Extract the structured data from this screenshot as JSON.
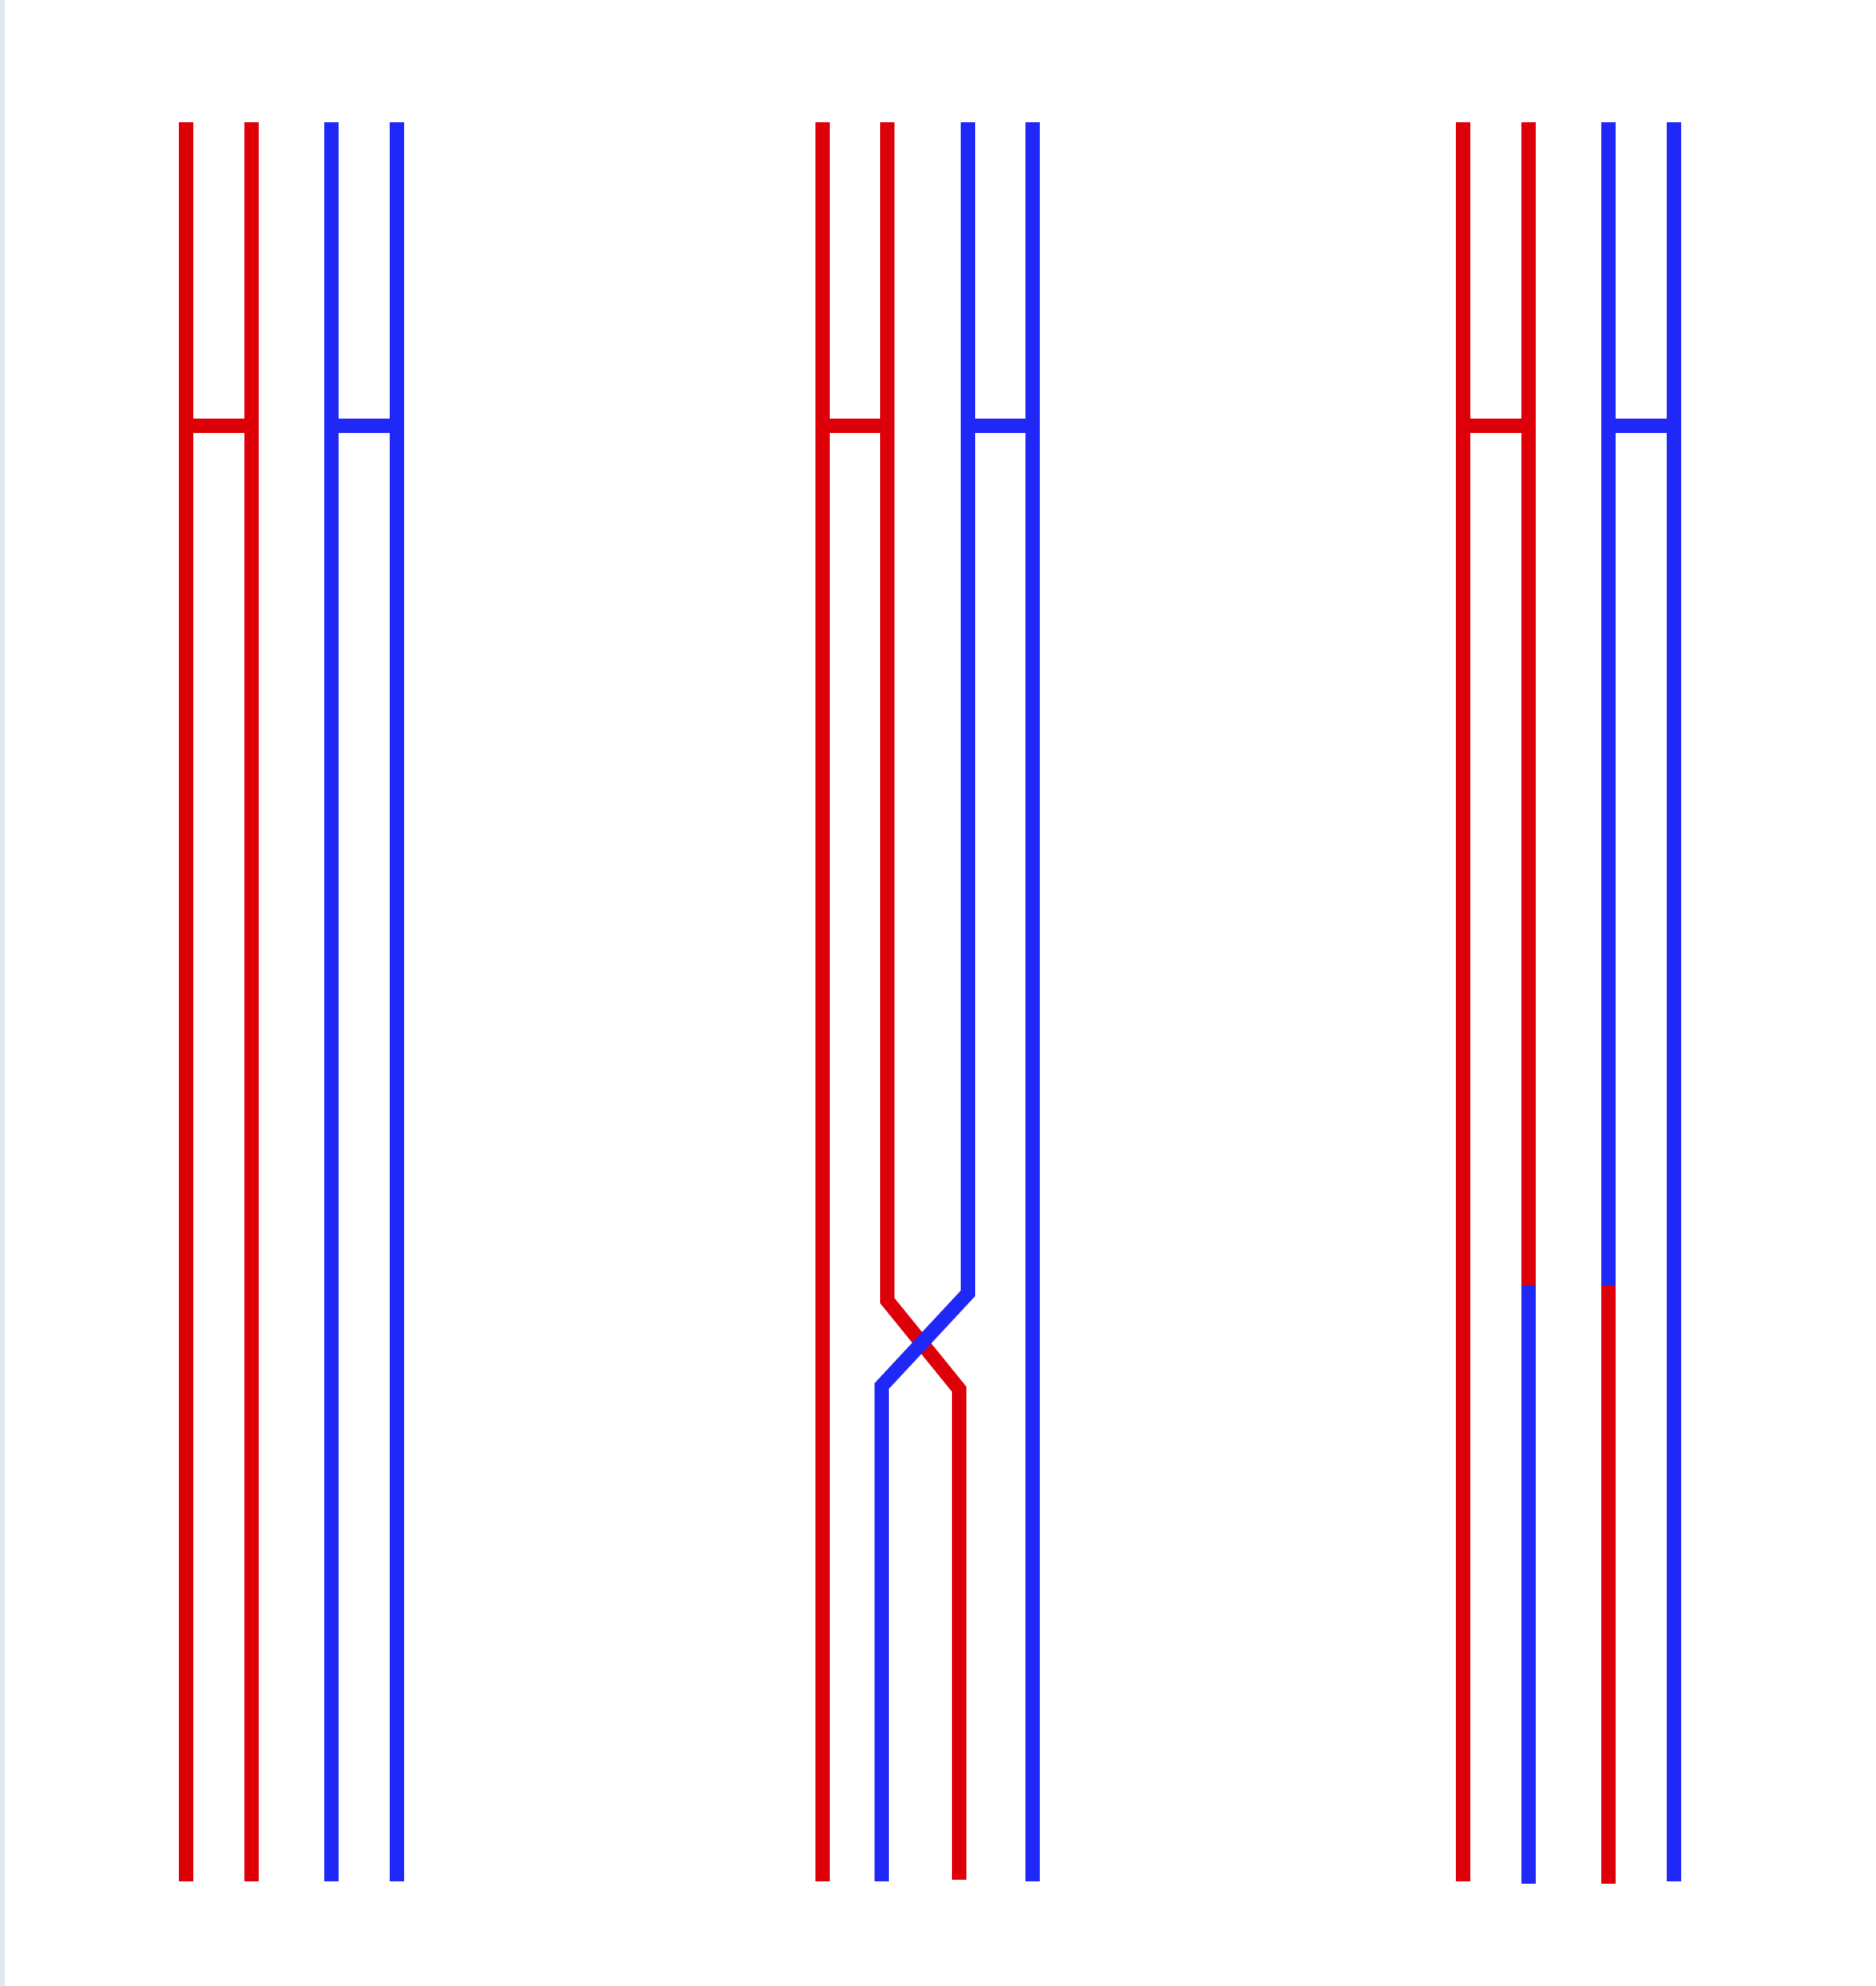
{
  "diagram": {
    "colors": {
      "maternal": "#dd0008",
      "paternal": "#2028f8",
      "background": "#ffffff",
      "left_edge": "#e1e6ef"
    },
    "stages": [
      {
        "id": "homologous-pair",
        "chromosomes": [
          {
            "color": "maternal",
            "pattern": "straight"
          },
          {
            "color": "paternal",
            "pattern": "straight"
          }
        ]
      },
      {
        "id": "chiasma-crossing",
        "chromosomes": [
          {
            "color": "maternal",
            "pattern": "cross-out"
          },
          {
            "color": "paternal",
            "pattern": "cross-in"
          }
        ]
      },
      {
        "id": "recombinant-chromatids",
        "chromosomes": [
          {
            "color": "maternal",
            "pattern": "swap-right"
          },
          {
            "color": "paternal",
            "pattern": "swap-left"
          }
        ]
      }
    ]
  }
}
